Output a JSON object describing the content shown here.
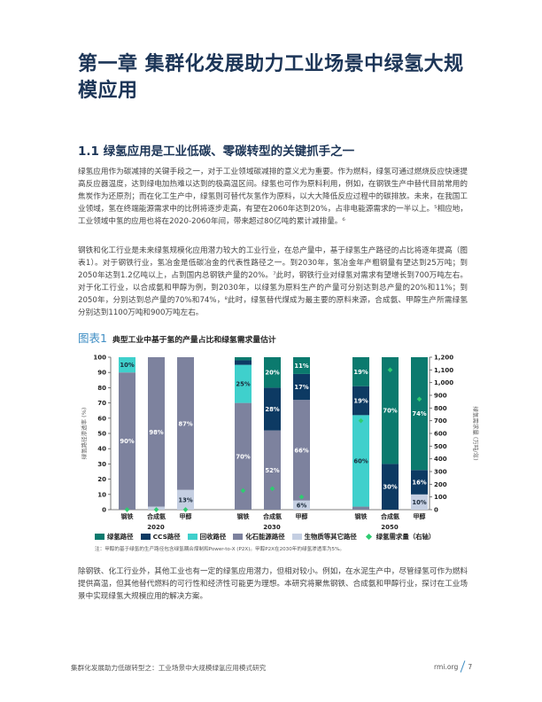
{
  "chapter_title": "第一章 集群化发展助力工业场景中绿氢大规模应用",
  "section_title": "1.1  绿氢应用是工业低碳、零碳转型的关键抓手之一",
  "paragraphs": [
    "绿氢应用作为碳减排的关键手段之一，对于工业领域碳减排的意义尤为重要。作为燃料，绿氢可通过燃烧反应快速提高反应器温度，达到绿电加热难以达到的极高温区间。绿氢也可作为原料利用，例如，在钢铁生产中替代目前常用的焦炭作为还原剂；而在化工生产中，绿氢则可替代灰氢作为原料，以大大降低反应过程中的碳排放。未来，在我国工业领域，氢在终端能源需求中的比例将逐步走高，有望在2060年达到20%，占非电能源需求的一半以上。⁵相应地，工业领域中氢的应用也将在2020-2060年间，带来超过80亿吨的累计减排量。⁶",
    "钢铁和化工行业是未来绿氢规模化应用潜力较大的工业行业，在总产量中，基于绿氢生产路径的占比将逐年提高（图表1）。对于钢铁行业，氢冶金是低碳冶金的代表性路径之一。到2030年，氢冶金年产粗钢量有望达到25万吨；到2050年达到1.2亿吨以上，占到国内总钢铁产量的20%。⁷此时，钢铁行业对绿氢对需求有望增长到700万吨左右。对于化工行业，以合成氨和甲醇为例，到2030年，以绿氢为原料生产的产量可分别达到总产量的20%和11%；到2050年，分别达到总产量的70%和74%，⁸此时，绿氢替代煤成为最主要的原料来源，合成氨、甲醇生产所需绿氢分别达到1100万吨和900万吨左右。",
    "除钢铁、化工行业外，其他工业也有一定的绿氢应用潜力，但相对较小。例如，在水泥生产中，尽管绿氢可作为燃料提供高温，但其他替代燃料的可行性和经济性可能更为理想。本研究将聚焦钢铁、合成氨和甲醇行业，探讨在工业场景中实现绿氢大规模应用的解决方案。"
  ],
  "figure": {
    "number": "图表1",
    "title": "典型工业中基于氢的产量占比和绿氢需求量估计",
    "note": "注：甲醇的基于绿氢的生产路径包含绿氢耦合煤制和Power-to-X (P2X)。甲醇P2X在2030年的绿氢渗透率为5%。"
  },
  "legend": [
    {
      "label": "绿氢路径",
      "color": "#0b7a6e"
    },
    {
      "label": "CCS路径",
      "color": "#0d3a63"
    },
    {
      "label": "回收路径",
      "color": "#3fd0cc"
    },
    {
      "label": "化石能源路径",
      "color": "#7d829e"
    },
    {
      "label": "生物质等其它路径",
      "color": "#c5cfe2"
    },
    {
      "label": "绿氢需求量（右轴）",
      "color": "#2ecc71",
      "marker": "diamond"
    }
  ],
  "chart_data": {
    "type": "bar",
    "stacked": true,
    "title": "典型工业中基于氢的产量占比和绿氢需求量估计",
    "ylabel": "绿氢路径渗透率 (%)",
    "y2label": "绿氢需求量 (万吨/年)",
    "ylim": [
      0,
      100
    ],
    "y2lim": [
      0,
      1200
    ],
    "yticks": [
      0,
      10,
      20,
      30,
      40,
      50,
      60,
      70,
      80,
      90,
      100
    ],
    "y2ticks": [
      "0",
      "100",
      "200",
      "300",
      "400",
      "500",
      "600",
      "700",
      "800",
      "900",
      "1,000",
      "1,100",
      "1,200"
    ],
    "groups": [
      "2020",
      "2030",
      "2050"
    ],
    "categories": [
      "钢铁",
      "合成氨",
      "甲醇"
    ],
    "bars": [
      {
        "group": "2020",
        "category": "钢铁",
        "segments": {
          "绿氢路径": 0,
          "CCS路径": 0,
          "回收路径": 10,
          "化石能源路径": 90,
          "生物质等其它路径": 0
        },
        "labels": {
          "回收路径": "10%",
          "化石能源路径": "90%"
        },
        "demand": 0
      },
      {
        "group": "2020",
        "category": "合成氨",
        "segments": {
          "绿氢路径": 0,
          "CCS路径": 0,
          "回收路径": 0,
          "化石能源路径": 98,
          "生物质等其它路径": 2
        },
        "labels": {
          "化石能源路径": "98%"
        },
        "demand": 0
      },
      {
        "group": "2020",
        "category": "甲醇",
        "segments": {
          "绿氢路径": 0,
          "CCS路径": 0,
          "回收路径": 0,
          "化石能源路径": 87,
          "生物质等其它路径": 13
        },
        "labels": {
          "化石能源路径": "87%",
          "生物质等其它路径": "13%"
        },
        "demand": 0
      },
      {
        "group": "2030",
        "category": "钢铁",
        "segments": {
          "绿氢路径": 2,
          "CCS路径": 3,
          "回收路径": 25,
          "化石能源路径": 70,
          "生物质等其它路径": 0
        },
        "labels": {
          "回收路径": "25%",
          "化石能源路径": "70%"
        },
        "demand": 150
      },
      {
        "group": "2030",
        "category": "合成氨",
        "segments": {
          "绿氢路径": 20,
          "CCS路径": 28,
          "回收路径": 0,
          "化石能源路径": 52,
          "生物质等其它路径": 0
        },
        "labels": {
          "绿氢路径": "20%",
          "CCS路径": "28%",
          "化石能源路径": "52%"
        },
        "demand": 165
      },
      {
        "group": "2030",
        "category": "甲醇",
        "segments": {
          "绿氢路径": 11,
          "CCS路径": 17,
          "回收路径": 0,
          "化石能源路径": 66,
          "生物质等其它路径": 6
        },
        "labels": {
          "绿氢路径": "11%",
          "CCS路径": "17%",
          "化石能源路径": "66%",
          "生物质等其它路径": "6%"
        },
        "demand": 100
      },
      {
        "group": "2050",
        "category": "钢铁",
        "segments": {
          "绿氢路径": 19,
          "CCS路径": 19,
          "回收路径": 60,
          "化石能源路径": 2,
          "生物质等其它路径": 0
        },
        "labels": {
          "绿氢路径": "19%",
          "CCS路径": "19%",
          "回收路径": "60%"
        },
        "demand": 700
      },
      {
        "group": "2050",
        "category": "合成氨",
        "segments": {
          "绿氢路径": 70,
          "CCS路径": 30,
          "回收路径": 0,
          "化石能源路径": 0,
          "生物质等其它路径": 0
        },
        "labels": {
          "绿氢路径": "70%",
          "CCS路径": "30%"
        },
        "demand": 1100
      },
      {
        "group": "2050",
        "category": "甲醇",
        "segments": {
          "绿氢路径": 74,
          "CCS路径": 16,
          "回收路径": 0,
          "化石能源路径": 0,
          "生物质等其它路径": 10
        },
        "labels": {
          "绿氢路径": "74%",
          "CCS路径": "16%",
          "生物质等其它路径": "10%"
        },
        "demand": 870
      }
    ],
    "legend_position": "bottom",
    "grid": false
  },
  "footer": {
    "left": "集群化发展助力低碳转型之：工业场景中大规模绿氢应用模式研究",
    "site": "rmi.org",
    "page": "7"
  }
}
